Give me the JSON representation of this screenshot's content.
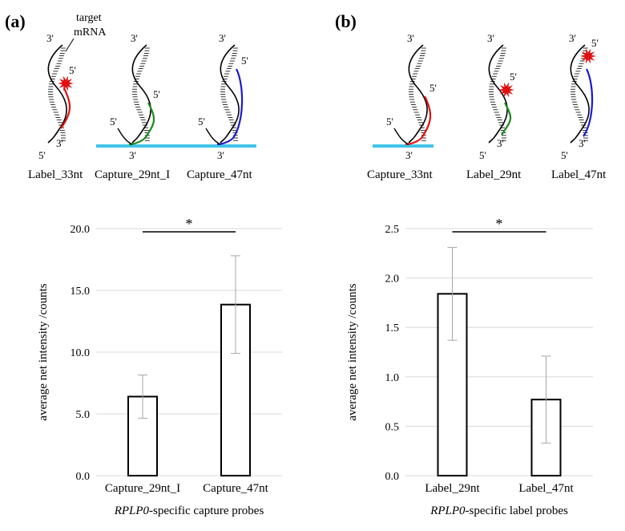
{
  "panel_a": {
    "label": "(a)",
    "target_label_line1": "target",
    "target_label_line2": "mRNA",
    "diagrams": [
      {
        "name": "Label_33nt",
        "color": "#e01010",
        "type": "label-33",
        "ends": {
          "top": "3'",
          "probe": "5'",
          "bottom": "3'",
          "strand": "5'"
        }
      },
      {
        "name": "Capture_29nt_I",
        "color": "#1a8a1a",
        "type": "capture-29",
        "ends": {
          "top": "3'",
          "probe": "5'",
          "left": "5'",
          "bottom": "3'"
        }
      },
      {
        "name": "Capture_47nt",
        "color": "#1a1ad0",
        "type": "capture-47",
        "ends": {
          "top": "3'",
          "probe": "5'",
          "left": "5'",
          "bottom": "3'"
        }
      }
    ],
    "surface_color": "#3fc4e8"
  },
  "panel_b": {
    "label": "(b)",
    "diagrams": [
      {
        "name": "Capture_33nt",
        "color": "#e01010",
        "type": "capture-33",
        "ends": {
          "top": "3'",
          "probe": "5'",
          "left": "5'",
          "bottom": "3'"
        }
      },
      {
        "name": "Label_29nt",
        "color": "#1a8a1a",
        "type": "label-29",
        "ends": {
          "top": "3'",
          "probe": "5'",
          "bottom": "3'",
          "strand": "5'"
        }
      },
      {
        "name": "Label_47nt",
        "color": "#1a1ad0",
        "type": "label-47",
        "ends": {
          "top": "3'",
          "probe": "5'",
          "bottom": "3'",
          "strand": "5'"
        }
      }
    ],
    "surface_color": "#3fc4e8"
  },
  "chart_data": [
    {
      "type": "bar",
      "categories": [
        "Capture_29nt_I",
        "Capture_47nt"
      ],
      "values": [
        6.4,
        13.85
      ],
      "error": [
        1.75,
        3.95
      ],
      "ylim": [
        0,
        20
      ],
      "yticks": [
        "0.0",
        "5.0",
        "10.0",
        "15.0",
        "20.0"
      ],
      "ylabel": "average net intensity /counts",
      "xlabel_italic": "RPLP0",
      "xlabel_rest": "-specific capture probes",
      "significance": "*"
    },
    {
      "type": "bar",
      "categories": [
        "Label_29nt",
        "Label_47nt"
      ],
      "values": [
        1.84,
        0.77
      ],
      "error": [
        0.47,
        0.44
      ],
      "ylim": [
        0,
        2.5
      ],
      "yticks": [
        "0.0",
        "0.5",
        "1.0",
        "1.5",
        "2.0",
        "2.5"
      ],
      "ylabel": "average net intensity /counts",
      "xlabel_italic": "RPLP0",
      "xlabel_rest": "-specific label probes",
      "significance": "*"
    }
  ]
}
